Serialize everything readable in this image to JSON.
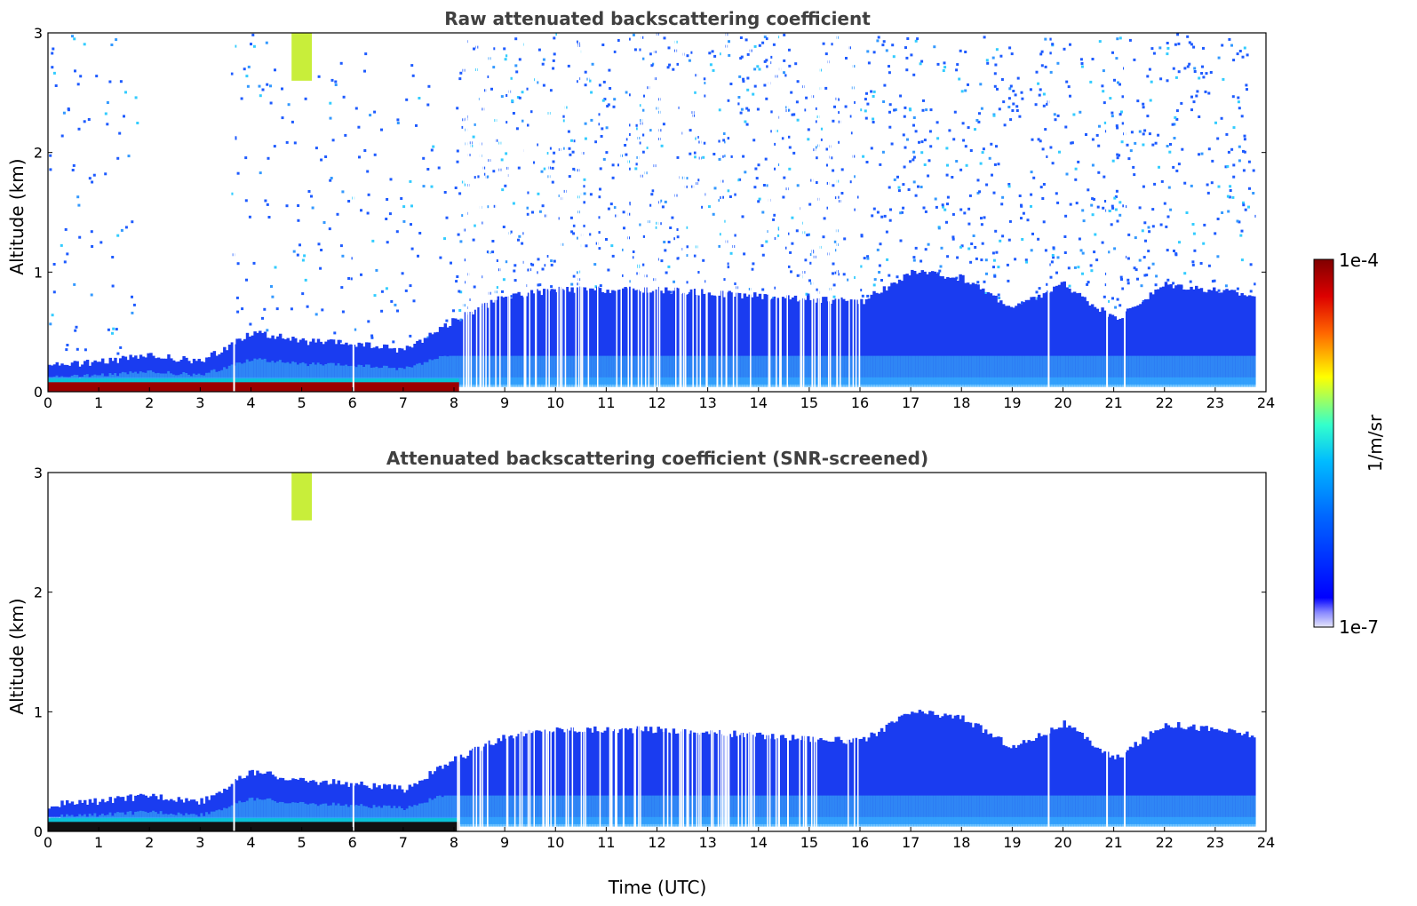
{
  "chart_data": [
    {
      "type": "heatmap",
      "title": "Raw attenuated backscattering coefficient",
      "xlabel": "",
      "ylabel": "Altitude (km)",
      "xlim": [
        0,
        24
      ],
      "ylim": [
        0,
        3
      ],
      "x_ticks": [
        "0",
        "1",
        "2",
        "3",
        "4",
        "5",
        "6",
        "7",
        "8",
        "9",
        "10",
        "11",
        "12",
        "13",
        "14",
        "15",
        "16",
        "17",
        "18",
        "19",
        "20",
        "21",
        "22",
        "23",
        "24"
      ],
      "y_ticks": [
        "0",
        "1",
        "2",
        "3"
      ],
      "data_end_time": 23.8,
      "layers": [
        {
          "feature": "surface layer",
          "time_range": [
            0,
            8.1
          ],
          "altitude_km": [
            0.0,
            0.08
          ],
          "level": "1e-4"
        },
        {
          "feature": "aerosol boundary layer top",
          "time_points": [
            0,
            1,
            2,
            3,
            4,
            5,
            6,
            7,
            8,
            9,
            10,
            12,
            14,
            16,
            17,
            18,
            19,
            20,
            21,
            22,
            23,
            23.8
          ],
          "altitude_km": [
            0.22,
            0.25,
            0.3,
            0.25,
            0.5,
            0.42,
            0.4,
            0.35,
            0.6,
            0.8,
            0.85,
            0.85,
            0.8,
            0.75,
            1.0,
            0.95,
            0.7,
            0.9,
            0.6,
            0.9,
            0.85,
            0.8
          ]
        },
        {
          "feature": "cloud / high backscatter",
          "time_range": [
            4.8,
            5.2
          ],
          "altitude_km": [
            2.6,
            3.0
          ],
          "level": "1e-5"
        }
      ]
    },
    {
      "type": "heatmap",
      "title": "Attenuated backscattering coefficient (SNR-screened)",
      "xlabel": "Time (UTC)",
      "ylabel": "Altitude (km)",
      "xlim": [
        0,
        24
      ],
      "ylim": [
        0,
        3
      ],
      "x_ticks": [
        "0",
        "1",
        "2",
        "3",
        "4",
        "5",
        "6",
        "7",
        "8",
        "9",
        "10",
        "11",
        "12",
        "13",
        "14",
        "15",
        "16",
        "17",
        "18",
        "19",
        "20",
        "21",
        "22",
        "23",
        "24"
      ],
      "y_ticks": [
        "0",
        "1",
        "2",
        "3"
      ],
      "data_end_time": 23.8,
      "layers": [
        {
          "feature": "surface layer",
          "time_range": [
            0,
            8.1
          ],
          "altitude_km": [
            0.0,
            0.08
          ],
          "level": "saturated"
        },
        {
          "feature": "aerosol boundary layer top",
          "time_points": [
            0,
            1,
            2,
            3,
            4,
            5,
            6,
            7,
            8,
            9,
            10,
            12,
            14,
            16,
            17,
            18,
            19,
            20,
            21,
            22,
            23,
            23.8
          ],
          "altitude_km": [
            0.22,
            0.25,
            0.3,
            0.25,
            0.5,
            0.42,
            0.4,
            0.35,
            0.6,
            0.8,
            0.85,
            0.85,
            0.8,
            0.75,
            1.0,
            0.95,
            0.7,
            0.9,
            0.6,
            0.9,
            0.85,
            0.8
          ]
        },
        {
          "feature": "cloud / high backscatter",
          "time_range": [
            4.8,
            5.2
          ],
          "altitude_km": [
            2.6,
            3.0
          ],
          "level": "1e-5"
        }
      ]
    }
  ],
  "colorbar": {
    "label": "1/m/sr",
    "max_label": "1e-4",
    "min_label": "1e-7",
    "scale": "log",
    "range": [
      1e-07,
      0.0001
    ],
    "colormap": "jet",
    "colors": [
      "#e6e6fa",
      "#0000ff",
      "#00aaff",
      "#33ffcc",
      "#ffff00",
      "#ff6600",
      "#cc0000",
      "#800000"
    ]
  }
}
